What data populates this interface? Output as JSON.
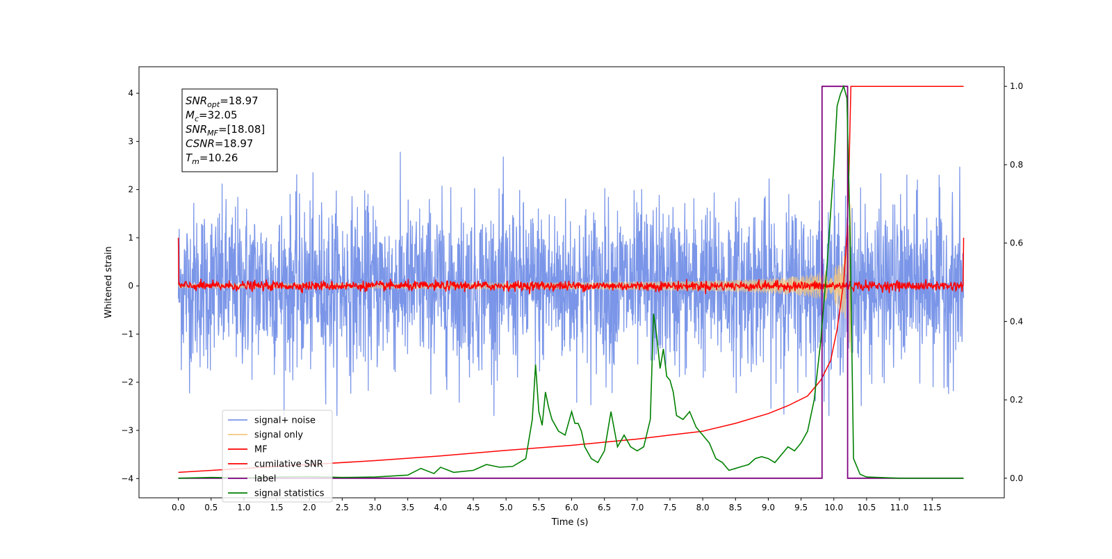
{
  "chart_data": {
    "type": "line",
    "xlabel": "Time (s)",
    "ylabel": "Whitened strain",
    "xlim": [
      -0.6,
      12.6
    ],
    "ylim": [
      -4.4,
      4.55
    ],
    "y2lim": [
      -0.05,
      1.05
    ],
    "x_ticks": [
      0.0,
      0.5,
      1.0,
      1.5,
      2.0,
      2.5,
      3.0,
      3.5,
      4.0,
      4.5,
      5.0,
      5.5,
      6.0,
      6.5,
      7.0,
      7.5,
      8.0,
      8.5,
      9.0,
      9.5,
      10.0,
      10.5,
      11.0,
      11.5
    ],
    "x_tick_labels": [
      "0.0",
      "0.5",
      "1.0",
      "1.5",
      "2.0",
      "2.5",
      "3.0",
      "3.5",
      "4.0",
      "4.5",
      "5.0",
      "5.5",
      "6.0",
      "6.5",
      "7.0",
      "7.5",
      "8.0",
      "8.5",
      "9.0",
      "9.5",
      "10.0",
      "10.5",
      "11.0",
      "11.5"
    ],
    "y_ticks": [
      -4,
      -3,
      -2,
      -1,
      0,
      1,
      2,
      3,
      4
    ],
    "y_tick_labels": [
      "−4",
      "−3",
      "−2",
      "−1",
      "0",
      "1",
      "2",
      "3",
      "4"
    ],
    "y2_ticks": [
      0.0,
      0.2,
      0.4,
      0.6,
      0.8,
      1.0
    ],
    "y2_tick_labels": [
      "0.0",
      "0.2",
      "0.4",
      "0.6",
      "0.8",
      "1.0"
    ],
    "grid": false,
    "legend_position": "lower-left",
    "annotation": {
      "lines": [
        {
          "sym": "SNR",
          "sub": "opt",
          "value": "=18.97"
        },
        {
          "sym": "M",
          "sub": "c",
          "value": "=32.05"
        },
        {
          "sym": "SNR",
          "sub": "MF",
          "value": "=[18.08]"
        },
        {
          "sym": "CSNR",
          "sub": "",
          "value": "=18.97"
        },
        {
          "sym": "T",
          "sub": "m",
          "value": "=10.26"
        }
      ]
    },
    "series": [
      {
        "name": "signal+ noise",
        "color": "#7b96e8",
        "axis": "left",
        "description_values": {
          "t_start": 0.0,
          "t_end": 11.98,
          "noise_std": 0.85,
          "envelope_min": -2.7,
          "envelope_max": 3.0
        }
      },
      {
        "name": "signal only",
        "color": "#f5c77e",
        "axis": "left",
        "description_values": {
          "t_start": 0.0,
          "t_end": 10.26,
          "peak_amplitude": 1.85,
          "merger_time": 10.26
        }
      },
      {
        "name": "MF",
        "color": "#ff0000",
        "axis": "left",
        "description_values": {
          "t_start": 0.0,
          "t_end": 11.98,
          "edge_value": 1.0,
          "noise_std": 0.05
        }
      },
      {
        "name": "cumilative SNR",
        "color": "#ff0000",
        "axis": "right",
        "x": [
          0.0,
          1.0,
          2.0,
          3.0,
          4.0,
          5.0,
          6.0,
          7.0,
          7.5,
          8.0,
          8.5,
          9.0,
          9.3,
          9.6,
          9.8,
          9.95,
          10.05,
          10.15,
          10.2,
          10.23,
          10.26,
          10.3,
          11.98
        ],
        "values": [
          0.015,
          0.025,
          0.035,
          0.045,
          0.057,
          0.071,
          0.084,
          0.1,
          0.11,
          0.12,
          0.14,
          0.165,
          0.185,
          0.21,
          0.25,
          0.3,
          0.38,
          0.5,
          0.62,
          0.78,
          1.0,
          1.0,
          1.0
        ]
      },
      {
        "name": "label",
        "color": "#800080",
        "axis": "right",
        "x": [
          0.0,
          9.82,
          9.82,
          10.21,
          10.21,
          10.3,
          10.3,
          11.98
        ],
        "values": [
          0,
          0,
          1,
          1,
          0.0,
          0.0,
          0,
          0
        ]
      },
      {
        "name": "signal statistics",
        "color": "#008000",
        "axis": "right",
        "x": [
          0.0,
          0.5,
          1.0,
          1.5,
          2.0,
          2.5,
          3.0,
          3.5,
          3.7,
          3.9,
          4.0,
          4.2,
          4.5,
          4.7,
          4.9,
          5.1,
          5.3,
          5.4,
          5.45,
          5.5,
          5.55,
          5.6,
          5.65,
          5.7,
          5.8,
          5.9,
          6.0,
          6.05,
          6.1,
          6.15,
          6.2,
          6.3,
          6.4,
          6.5,
          6.6,
          6.7,
          6.8,
          6.9,
          7.0,
          7.1,
          7.2,
          7.25,
          7.3,
          7.35,
          7.4,
          7.45,
          7.5,
          7.55,
          7.6,
          7.7,
          7.8,
          7.9,
          8.0,
          8.1,
          8.2,
          8.3,
          8.4,
          8.5,
          8.6,
          8.7,
          8.8,
          8.9,
          9.0,
          9.1,
          9.2,
          9.3,
          9.4,
          9.5,
          9.6,
          9.7,
          9.8,
          9.9,
          10.0,
          10.05,
          10.1,
          10.15,
          10.2,
          10.25,
          10.3,
          10.4,
          10.5,
          11.0,
          11.98
        ],
        "values": [
          0.0,
          0.002,
          0.001,
          0.003,
          0.004,
          0.002,
          0.003,
          0.008,
          0.025,
          0.012,
          0.028,
          0.015,
          0.02,
          0.035,
          0.028,
          0.03,
          0.05,
          0.15,
          0.29,
          0.17,
          0.135,
          0.22,
          0.18,
          0.15,
          0.12,
          0.11,
          0.17,
          0.14,
          0.14,
          0.12,
          0.08,
          0.05,
          0.04,
          0.07,
          0.17,
          0.08,
          0.11,
          0.08,
          0.07,
          0.08,
          0.15,
          0.42,
          0.36,
          0.28,
          0.33,
          0.26,
          0.25,
          0.22,
          0.16,
          0.15,
          0.17,
          0.13,
          0.11,
          0.09,
          0.05,
          0.04,
          0.02,
          0.025,
          0.03,
          0.035,
          0.05,
          0.055,
          0.05,
          0.04,
          0.06,
          0.08,
          0.07,
          0.09,
          0.12,
          0.2,
          0.35,
          0.55,
          0.8,
          0.95,
          0.98,
          1.0,
          0.97,
          0.6,
          0.05,
          0.01,
          0.003,
          0.0,
          0.0
        ]
      }
    ]
  }
}
